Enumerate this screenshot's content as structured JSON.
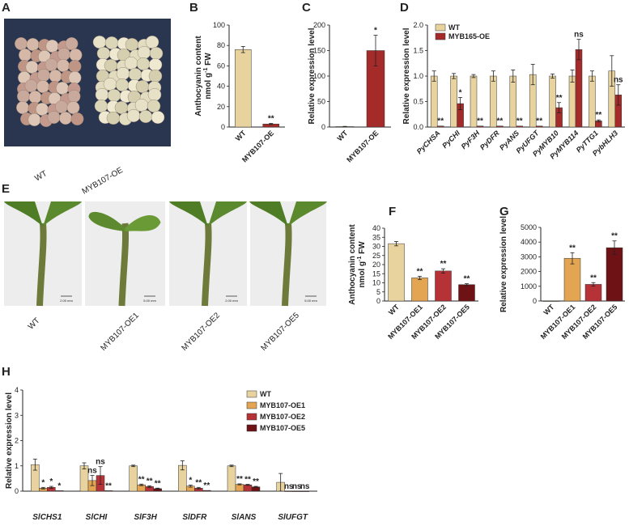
{
  "colors": {
    "wt": "#e8d39f",
    "oe1": "#e3a552",
    "oe2": "#b73236",
    "oe5": "#6e1216",
    "my": "#a52a2a",
    "plate_bg": "#2a3550",
    "plant_bg": "#ededed"
  },
  "panel_letters": [
    "A",
    "B",
    "C",
    "D",
    "E",
    "F",
    "G",
    "H"
  ],
  "panelA": {
    "labels": [
      "WT",
      "MYB107-OE"
    ]
  },
  "panelE": {
    "labels": [
      "WT",
      "MYB107-OE1",
      "MYB107-OE2",
      "MYB107-OE5"
    ],
    "scale_labels": [
      "2.00 mm",
      "5.00 mm",
      "2.00 mm",
      "5.00 mm"
    ]
  },
  "chart_data": [
    {
      "id": "B",
      "type": "bar",
      "title": "",
      "ylabel": "Anthocyanin content nmol g-1 FW",
      "ylabel_lines": [
        "Anthocyanin content",
        "nmol g",
        "-1",
        " FW"
      ],
      "ylim": [
        0,
        100
      ],
      "yticks": [
        0,
        20,
        40,
        60,
        80,
        100
      ],
      "categories": [
        "WT",
        "MYB107-OE"
      ],
      "values": [
        76,
        3
      ],
      "errors": [
        3,
        0.5
      ],
      "sig": [
        "",
        "**"
      ],
      "color_keys": [
        "wt",
        "my"
      ]
    },
    {
      "id": "C",
      "type": "bar",
      "ylabel": "Relative expression level",
      "ylim": [
        0,
        200
      ],
      "yticks": [
        0,
        50,
        100,
        150,
        200
      ],
      "categories": [
        "WT",
        "MYB107-OE"
      ],
      "values": [
        1,
        150
      ],
      "errors": [
        0.3,
        30
      ],
      "sig": [
        "",
        "*"
      ],
      "color_keys": [
        "wt",
        "my"
      ]
    },
    {
      "id": "D",
      "type": "bar",
      "ylabel": "Relative expression level",
      "ylim": [
        0,
        2.0
      ],
      "yticks": [
        "0.0",
        "0.5",
        "1.0",
        "1.5",
        "2.0"
      ],
      "categories": [
        "PyCHSA",
        "PyCHI",
        "PyF3H",
        "PyDFR",
        "PyANS",
        "PyUFGT",
        "PyMYB10",
        "PyMYB114",
        "PyTTG1",
        "PybHLH3"
      ],
      "legend": [
        "WT",
        "MYB165-OE"
      ],
      "series": [
        {
          "name": "WT",
          "values": [
            1.0,
            1.0,
            1.0,
            1.0,
            1.0,
            1.03,
            1.0,
            1.0,
            1.0,
            1.1
          ],
          "errors": [
            0.1,
            0.05,
            0.03,
            0.1,
            0.12,
            0.2,
            0.04,
            0.12,
            0.1,
            0.3
          ]
        },
        {
          "name": "MYB165-OE",
          "values": [
            0.02,
            0.46,
            0.02,
            0.02,
            0.02,
            0.02,
            0.38,
            1.52,
            0.12,
            0.63
          ],
          "errors": [
            0,
            0.12,
            0,
            0,
            0,
            0,
            0.1,
            0.2,
            0.02,
            0.2
          ]
        }
      ],
      "sig": [
        "**",
        "*",
        "**",
        "**",
        "**",
        "**",
        "**",
        "ns",
        "**",
        "ns"
      ]
    },
    {
      "id": "F",
      "type": "bar",
      "ylabel": "Anthocyanin content nmol g-1 FW",
      "ylabel_lines": [
        "Anthocyanin content",
        "nmol g",
        "-1",
        " FW"
      ],
      "ylim": [
        0,
        40
      ],
      "yticks": [
        0,
        5,
        10,
        15,
        20,
        25,
        30,
        35,
        40
      ],
      "categories": [
        "WT",
        "MYB107-OE1",
        "MYB107-OE2",
        "MYB107-OE5"
      ],
      "values": [
        31.5,
        12.7,
        16.5,
        9.0
      ],
      "errors": [
        1.2,
        0.9,
        1.2,
        0.5
      ],
      "sig": [
        "",
        "**",
        "**",
        "**"
      ],
      "color_keys": [
        "wt",
        "oe1",
        "oe2",
        "oe5"
      ]
    },
    {
      "id": "G",
      "type": "bar",
      "ylabel": "Relative expression level",
      "ylim": [
        0,
        5000
      ],
      "yticks": [
        0,
        1000,
        2000,
        3000,
        4000,
        5000
      ],
      "categories": [
        "WT",
        "MYB107-OE1",
        "MYB107-OE2",
        "MYB107-OE5"
      ],
      "values": [
        1,
        2900,
        1130,
        3620
      ],
      "errors": [
        0,
        380,
        120,
        460
      ],
      "sig": [
        "",
        "**",
        "**",
        "**"
      ],
      "color_keys": [
        "wt",
        "oe1",
        "oe2",
        "oe5"
      ]
    },
    {
      "id": "H",
      "type": "bar",
      "ylabel": "Relative expression level",
      "ylim": [
        0,
        4
      ],
      "yticks": [
        0,
        1,
        2,
        3,
        4
      ],
      "categories": [
        "SlCHS1",
        "SlCHI",
        "SlF3H",
        "SlDFR",
        "SlANS",
        "SlUFGT"
      ],
      "legend": [
        "WT",
        "MYB107-OE1",
        "MYB107-OE2",
        "MYB107-OE5"
      ],
      "series": [
        {
          "name": "WT",
          "values": [
            1.05,
            1.0,
            1.0,
            1.02,
            1.0,
            0.35
          ],
          "errors": [
            0.22,
            0.12,
            0.03,
            0.18,
            0.03,
            0.35
          ]
        },
        {
          "name": "MYB107-OE1",
          "values": [
            0.12,
            0.42,
            0.25,
            0.2,
            0.27,
            0.0
          ],
          "errors": [
            0.03,
            0.2,
            0.03,
            0.04,
            0.02,
            0
          ]
        },
        {
          "name": "MYB107-OE2",
          "values": [
            0.15,
            0.62,
            0.18,
            0.12,
            0.25,
            0.0
          ],
          "errors": [
            0.04,
            0.35,
            0.03,
            0.03,
            0.02,
            0
          ]
        },
        {
          "name": "MYB107-OE5",
          "values": [
            0.02,
            0.02,
            0.1,
            0.03,
            0.17,
            0.0
          ],
          "errors": [
            0,
            0,
            0.02,
            0,
            0.02,
            0
          ]
        }
      ],
      "sig": [
        [
          "",
          "*",
          "*",
          "*"
        ],
        [
          "",
          "ns",
          "ns",
          "**"
        ],
        [
          "",
          "**",
          "**",
          "**"
        ],
        [
          "",
          "*",
          "**",
          "**"
        ],
        [
          "",
          "**",
          "**",
          "**"
        ],
        [
          "",
          "ns",
          "ns",
          "ns"
        ]
      ]
    }
  ]
}
